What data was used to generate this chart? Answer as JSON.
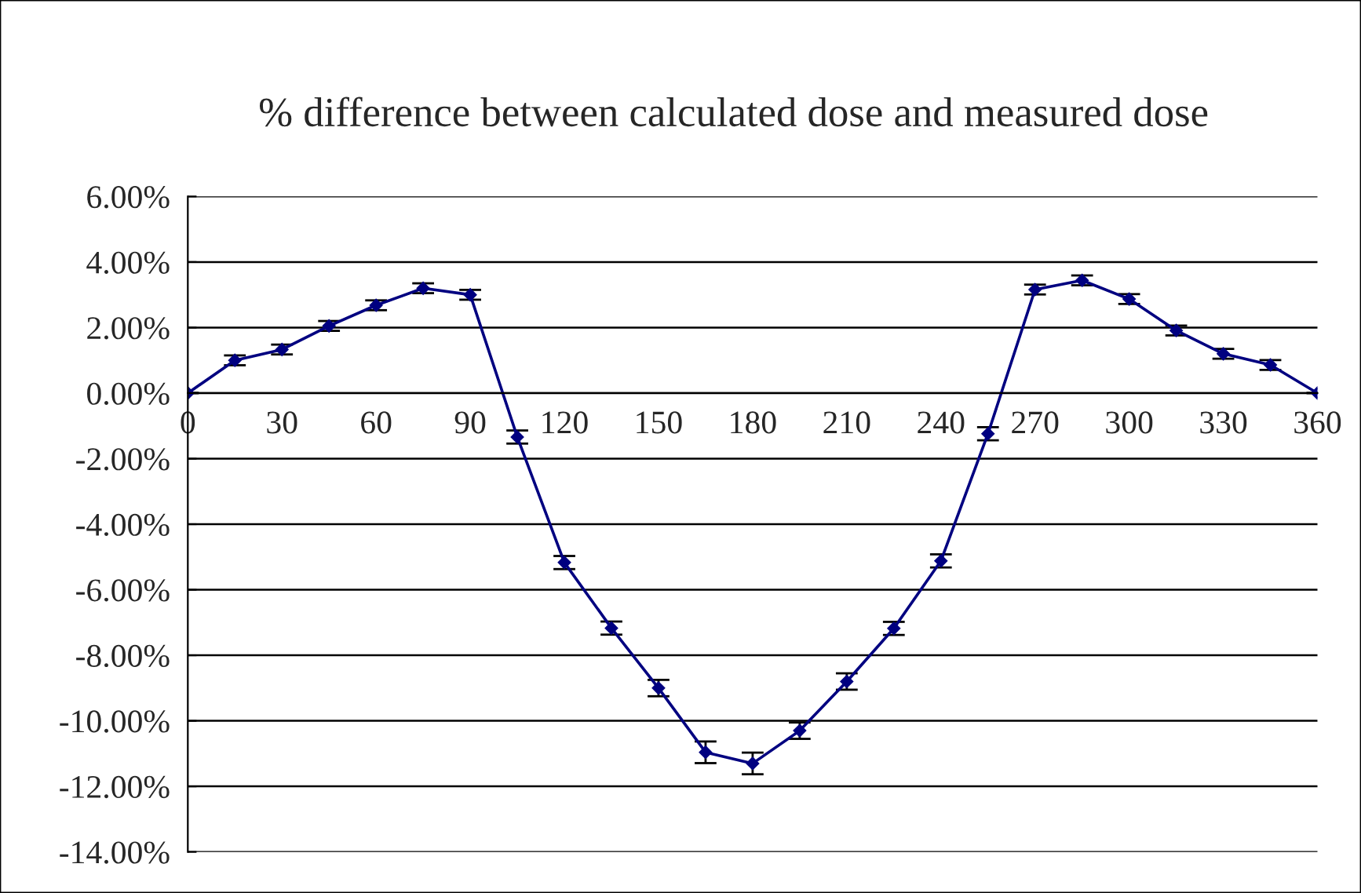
{
  "chart_data": {
    "type": "line",
    "title": "% difference between calculated dose and measured dose",
    "x": [
      0,
      15,
      30,
      45,
      60,
      75,
      90,
      105,
      120,
      135,
      150,
      165,
      180,
      195,
      210,
      225,
      240,
      255,
      270,
      285,
      300,
      315,
      330,
      345,
      360
    ],
    "series": [
      {
        "color": "#000080",
        "values": [
          0,
          1.0,
          1.33,
          2.05,
          2.68,
          3.2,
          3.0,
          -1.34,
          -5.17,
          -7.17,
          -9.0,
          -10.96,
          -11.3,
          -10.3,
          -8.8,
          -7.18,
          -5.12,
          -1.24,
          3.16,
          3.44,
          2.87,
          1.91,
          1.2,
          0.86,
          0
        ],
        "errors": [
          null,
          0.15,
          0.15,
          0.15,
          0.15,
          0.15,
          0.15,
          0.2,
          0.2,
          0.2,
          0.25,
          0.33,
          0.33,
          0.25,
          0.25,
          0.2,
          0.2,
          0.2,
          0.15,
          0.15,
          0.15,
          0.15,
          0.15,
          0.15,
          null
        ]
      }
    ],
    "xlim": [
      0,
      360
    ],
    "xticks": [
      0,
      30,
      60,
      90,
      120,
      150,
      180,
      210,
      240,
      270,
      300,
      330,
      360
    ],
    "ylim": [
      -14,
      6
    ],
    "yticks": [
      {
        "value": 6,
        "label": "6.00%"
      },
      {
        "value": 4,
        "label": "4.00%"
      },
      {
        "value": 2,
        "label": "2.00%"
      },
      {
        "value": 0,
        "label": "0.00%"
      },
      {
        "value": -2,
        "label": "-2.00%"
      },
      {
        "value": -4,
        "label": "-4.00%"
      },
      {
        "value": -6,
        "label": "-6.00%"
      },
      {
        "value": -8,
        "label": "-8.00%"
      },
      {
        "value": -10,
        "label": "-10.00%"
      },
      {
        "value": -12,
        "label": "-12.00%"
      },
      {
        "value": -14,
        "label": "-14.00%"
      }
    ],
    "grid": "y",
    "marker": "diamond",
    "line_style": "solid",
    "legend": false
  }
}
